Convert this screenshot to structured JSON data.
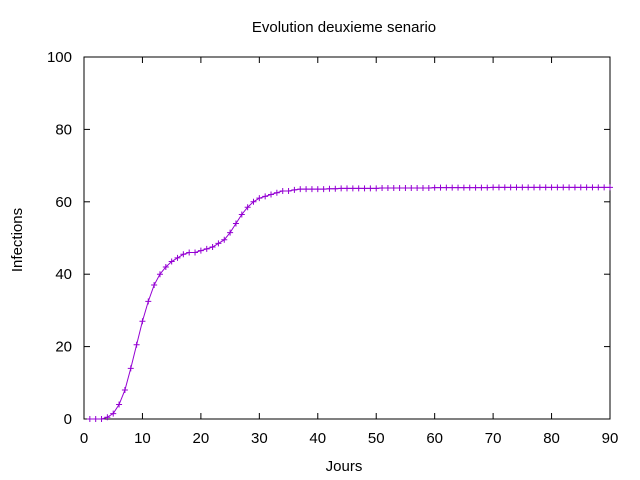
{
  "chart_data": {
    "type": "line",
    "title": "Evolution deuxieme senario",
    "xlabel": "Jours",
    "ylabel": "Infections",
    "xlim": [
      0,
      90
    ],
    "ylim": [
      0,
      100
    ],
    "xticks": [
      0,
      10,
      20,
      30,
      40,
      50,
      60,
      70,
      80,
      90
    ],
    "yticks": [
      0,
      20,
      40,
      60,
      80,
      100
    ],
    "grid": false,
    "legend": "none",
    "marker": "plus",
    "color": "#9400d3",
    "series": [
      {
        "x": [
          1,
          2,
          3,
          4,
          5,
          6,
          7,
          8,
          9,
          10,
          11,
          12,
          13,
          14,
          15,
          16,
          17,
          18,
          19,
          20,
          21,
          22,
          23,
          24,
          25,
          26,
          27,
          28,
          29,
          30,
          31,
          32,
          33,
          34,
          35,
          36,
          37,
          38,
          39,
          40,
          41,
          42,
          43,
          44,
          45,
          46,
          47,
          48,
          49,
          50,
          51,
          52,
          53,
          54,
          55,
          56,
          57,
          58,
          59,
          60,
          61,
          62,
          63,
          64,
          65,
          66,
          67,
          68,
          69,
          70,
          71,
          72,
          73,
          74,
          75,
          76,
          77,
          78,
          79,
          80,
          81,
          82,
          83,
          84,
          85,
          86,
          87,
          88,
          89,
          90
        ],
        "values": [
          0,
          0,
          0,
          0.5,
          1.5,
          4,
          8,
          14,
          20.5,
          27,
          32.5,
          37,
          40,
          42,
          43.5,
          44.5,
          45.5,
          46,
          46,
          46.5,
          47,
          47.5,
          48.5,
          49.5,
          51.5,
          54,
          56.5,
          58.5,
          60,
          61,
          61.5,
          62,
          62.5,
          63,
          63,
          63.3,
          63.5,
          63.5,
          63.5,
          63.5,
          63.5,
          63.6,
          63.6,
          63.7,
          63.7,
          63.7,
          63.7,
          63.7,
          63.7,
          63.7,
          63.8,
          63.8,
          63.8,
          63.8,
          63.8,
          63.8,
          63.8,
          63.8,
          63.8,
          63.9,
          63.9,
          63.9,
          63.9,
          63.9,
          63.9,
          63.9,
          63.9,
          63.9,
          63.9,
          64,
          64,
          64,
          64,
          64,
          64,
          64,
          64,
          64,
          64,
          64,
          64,
          64,
          64,
          64,
          64,
          64,
          64,
          64,
          64,
          64
        ]
      }
    ]
  }
}
